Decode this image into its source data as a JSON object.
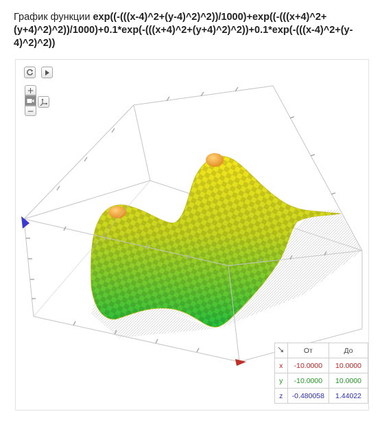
{
  "title": {
    "prefix": "График функции ",
    "function": "exp((-(((x-4)^2+(y-4)^2)^2))/1000)+exp((-(((x+4)^2+(y+4)^2)^2))/1000)+0.1*exp(-(((x+4)^2+(y+4)^2)^2))+0.1*exp(-(((x-4)^2+(y-4)^2)^2))"
  },
  "toolbar": {
    "reset_icon": "refresh-icon",
    "play_icon": "play-icon",
    "zoom_in_label": "+",
    "zoom_out_label": "−",
    "camera_icon": "camera-icon",
    "mode_icon": "axes-move-icon"
  },
  "range_table": {
    "corner_icon": "arrow-icon",
    "headers": [
      "От",
      "До"
    ],
    "rows": [
      {
        "axis": "x",
        "from": "-10.0000",
        "to": "10.0000",
        "color": "#cc1f1f"
      },
      {
        "axis": "y",
        "from": "-10.0000",
        "to": "10.0000",
        "color": "#1e9a1e"
      },
      {
        "axis": "z",
        "from": "-0.480058",
        "to": "1.44022",
        "color": "#2b2bb8"
      }
    ]
  },
  "colors": {
    "surface_high": "#f7e21c",
    "surface_low": "#1fbf3a",
    "peak": "#f0a030",
    "axis_x": "#c0302a",
    "axis_z": "#3a3acf",
    "box": "#bdbdbd"
  }
}
